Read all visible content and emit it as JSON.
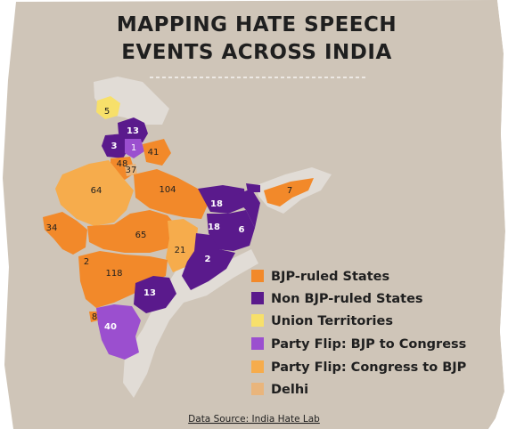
{
  "title": {
    "line1": "MAPPING HATE SPEECH",
    "line2": "EVENTS ACROSS INDIA"
  },
  "colors": {
    "bjp": "#f2892a",
    "non_bjp": "#5a1a8c",
    "ut": "#f7e06a",
    "flip_bjp_to_congress": "#9b4fcf",
    "flip_congress_to_bjp": "#f6ac4c",
    "delhi": "#e9b57c",
    "other": "#e1dcd6",
    "paper": "#cfc5b8"
  },
  "legend": [
    {
      "key": "bjp",
      "label": "BJP-ruled States"
    },
    {
      "key": "non_bjp",
      "label": "Non BJP-ruled States"
    },
    {
      "key": "ut",
      "label": "Union Territories"
    },
    {
      "key": "flip_bjp_to_congress",
      "label": "Party Flip: BJP to Congress"
    },
    {
      "key": "flip_congress_to_bjp",
      "label": "Party Flip: Congress to BJP"
    },
    {
      "key": "delhi",
      "label": "Delhi"
    }
  ],
  "map_labels": {
    "ladakh": "5",
    "jammu_kashmir": "13",
    "himachal_pradesh": "3",
    "punjab": "1",
    "uttarakhand": "41",
    "haryana": "48",
    "delhi": "37",
    "rajasthan": "64",
    "uttar_pradesh": "104",
    "bihar": "18",
    "west_bengal": "18",
    "jharkhand_east": "6",
    "northeast": "7",
    "gujarat": "34",
    "madhya_pradesh": "65",
    "chhattisgarh": "21",
    "odisha": "2",
    "daman": "2",
    "maharashtra": "118",
    "telangana": "13",
    "goa": "8",
    "karnataka": "40"
  },
  "source": "Data Source: India Hate Lab"
}
